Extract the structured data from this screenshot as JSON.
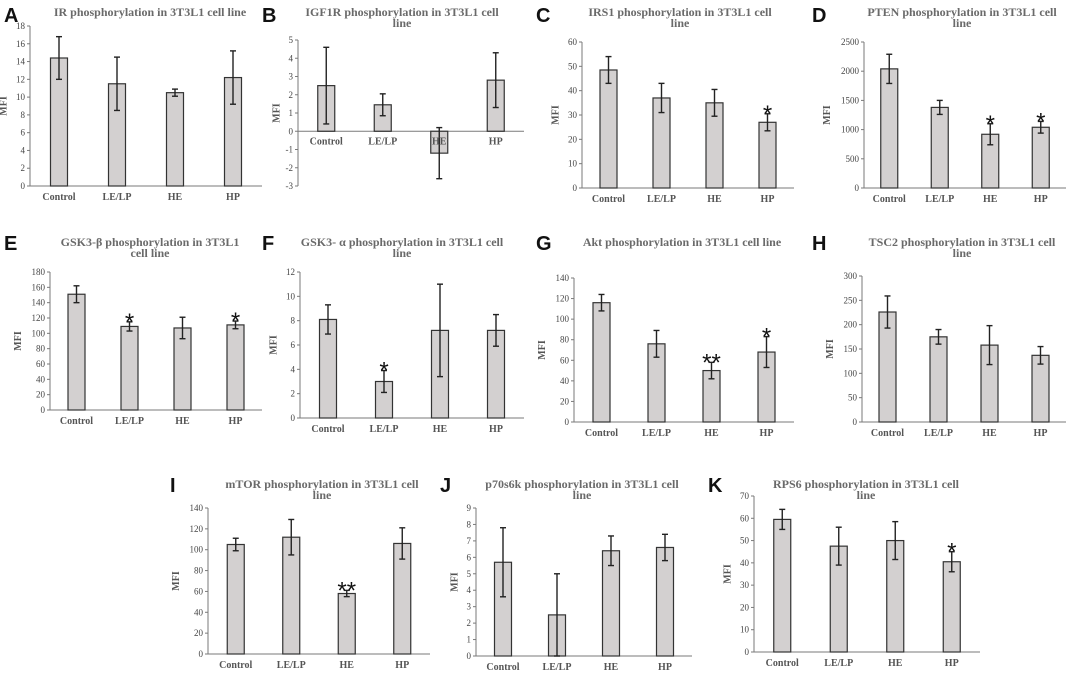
{
  "chart_data": [
    {
      "panel": "A",
      "type": "bar",
      "title": [
        "IR  phosphorylation in 3T3L1 cell line"
      ],
      "ylabel": "MFI",
      "xlabel": "",
      "ylim": [
        0,
        18
      ],
      "yticks": [
        0,
        2,
        4,
        6,
        8,
        10,
        12,
        14,
        16,
        18
      ],
      "categories": [
        "Control",
        "LE/LP",
        "HE",
        "HP"
      ],
      "values": [
        14.4,
        11.5,
        10.5,
        12.2
      ],
      "errors": [
        2.4,
        3.0,
        0.4,
        3.0
      ],
      "significance": [
        "",
        "",
        "",
        ""
      ]
    },
    {
      "panel": "B",
      "type": "bar",
      "title": [
        "IGF1R phosphorylation in 3T3L1  cell",
        "line"
      ],
      "ylabel": "MFI",
      "xlabel": "",
      "ylim": [
        -3,
        5
      ],
      "yticks": [
        -3,
        -2,
        -1,
        0,
        1,
        2,
        3,
        4,
        5
      ],
      "categories": [
        "Control",
        "LE/LP",
        "HE",
        "HP"
      ],
      "values": [
        2.5,
        1.45,
        -1.2,
        2.8
      ],
      "errors": [
        2.1,
        0.6,
        1.4,
        1.5
      ],
      "significance": [
        "",
        "",
        "",
        ""
      ]
    },
    {
      "panel": "C",
      "type": "bar",
      "title": [
        "IRS1 phosphorylation in 3T3L1 cell",
        "line"
      ],
      "ylabel": "MFI",
      "xlabel": "",
      "ylim": [
        0,
        60
      ],
      "yticks": [
        0,
        10,
        20,
        30,
        40,
        50,
        60
      ],
      "categories": [
        "Control",
        "LE/LP",
        "HE",
        "HP"
      ],
      "values": [
        48.5,
        37,
        35,
        27
      ],
      "errors": [
        5.5,
        6,
        5.5,
        3.5
      ],
      "significance": [
        "",
        "",
        "",
        "*"
      ]
    },
    {
      "panel": "D",
      "type": "bar",
      "title": [
        "PTEN phosphorylation in 3T3L1  cell",
        "line"
      ],
      "ylabel": "MFI",
      "xlabel": "",
      "ylim": [
        0,
        2500
      ],
      "yticks": [
        0,
        500,
        1000,
        1500,
        2000,
        2500
      ],
      "categories": [
        "Control",
        "LE/LP",
        "HE",
        "HP"
      ],
      "values": [
        2040,
        1380,
        920,
        1040
      ],
      "errors": [
        250,
        120,
        180,
        100
      ],
      "significance": [
        "",
        "",
        "*",
        "*"
      ]
    },
    {
      "panel": "E",
      "type": "bar",
      "title": [
        "GSK3-β  phosphorylation in 3T3L1",
        "cell line"
      ],
      "ylabel": "MFI",
      "xlabel": "",
      "ylim": [
        0,
        180
      ],
      "yticks": [
        0,
        20,
        40,
        60,
        80,
        100,
        120,
        140,
        160,
        180
      ],
      "categories": [
        "Control",
        "LE/LP",
        "HE",
        "HP"
      ],
      "values": [
        151,
        109,
        107,
        111
      ],
      "errors": [
        11,
        6,
        14,
        5
      ],
      "significance": [
        "",
        "*",
        "",
        "*"
      ]
    },
    {
      "panel": "F",
      "type": "bar",
      "title": [
        "GSK3- α  phosphorylation in 3T3L1 cell",
        "line"
      ],
      "ylabel": "MFI",
      "xlabel": "",
      "ylim": [
        0,
        12
      ],
      "yticks": [
        0,
        2,
        4,
        6,
        8,
        10,
        12
      ],
      "categories": [
        "Control",
        "LE/LP",
        "HE",
        "HP"
      ],
      "values": [
        8.1,
        3.0,
        7.2,
        7.2
      ],
      "errors": [
        1.2,
        0.9,
        3.8,
        1.3
      ],
      "significance": [
        "",
        "*",
        "",
        ""
      ]
    },
    {
      "panel": "G",
      "type": "bar",
      "title": [
        "Akt  phosphorylation in 3T3L1 cell line"
      ],
      "ylabel": "MFI",
      "xlabel": "",
      "ylim": [
        0,
        140
      ],
      "yticks": [
        0,
        20,
        40,
        60,
        80,
        100,
        120,
        140
      ],
      "categories": [
        "Control",
        "LE/LP",
        "HE",
        "HP"
      ],
      "values": [
        116,
        76,
        50,
        68
      ],
      "errors": [
        8,
        13,
        8,
        15
      ],
      "significance": [
        "",
        "",
        "**",
        "*"
      ]
    },
    {
      "panel": "H",
      "type": "bar",
      "title": [
        "TSC2  phosphorylation in 3T3L1  cell",
        "line"
      ],
      "ylabel": "MFI",
      "xlabel": "",
      "ylim": [
        0,
        300
      ],
      "yticks": [
        0,
        50,
        100,
        150,
        200,
        250,
        300
      ],
      "categories": [
        "Control",
        "LE/LP",
        "HE",
        "HP"
      ],
      "values": [
        226,
        175,
        158,
        137
      ],
      "errors": [
        33,
        15,
        40,
        18
      ],
      "significance": [
        "",
        "",
        "",
        ""
      ]
    },
    {
      "panel": "I",
      "type": "bar",
      "title": [
        "mTOR phosphorylation in 3T3L1 cell",
        "line"
      ],
      "ylabel": "MFI",
      "xlabel": "",
      "ylim": [
        0,
        140
      ],
      "yticks": [
        0,
        20,
        40,
        60,
        80,
        100,
        120,
        140
      ],
      "categories": [
        "Control",
        "LE/LP",
        "HE",
        "HP"
      ],
      "values": [
        105,
        112,
        58,
        106
      ],
      "errors": [
        6,
        17,
        3,
        15
      ],
      "significance": [
        "",
        "",
        "**",
        ""
      ]
    },
    {
      "panel": "J",
      "type": "bar",
      "title": [
        "p70s6k  phosphorylation in 3T3L1  cell",
        "line"
      ],
      "ylabel": "MFI",
      "xlabel": "",
      "ylim": [
        0,
        9
      ],
      "yticks": [
        0,
        1,
        2,
        3,
        4,
        5,
        6,
        7,
        8,
        9
      ],
      "categories": [
        "Control",
        "LE/LP",
        "HE",
        "HP"
      ],
      "values": [
        5.7,
        2.5,
        6.4,
        6.6
      ],
      "errors": [
        2.1,
        2.5,
        0.9,
        0.8
      ],
      "significance": [
        "",
        "",
        "",
        ""
      ]
    },
    {
      "panel": "K",
      "type": "bar",
      "title": [
        "RPS6  phosphorylation in 3T3L1 cell",
        "line"
      ],
      "ylabel": "MFI",
      "xlabel": "",
      "ylim": [
        0,
        70
      ],
      "yticks": [
        0,
        10,
        20,
        30,
        40,
        50,
        60,
        70
      ],
      "categories": [
        "Control",
        "LE/LP",
        "HE",
        "HP"
      ],
      "values": [
        59.5,
        47.5,
        50,
        40.5
      ],
      "errors": [
        4.5,
        8.5,
        8.5,
        4.5
      ],
      "significance": [
        "",
        "",
        "",
        "*"
      ]
    }
  ]
}
